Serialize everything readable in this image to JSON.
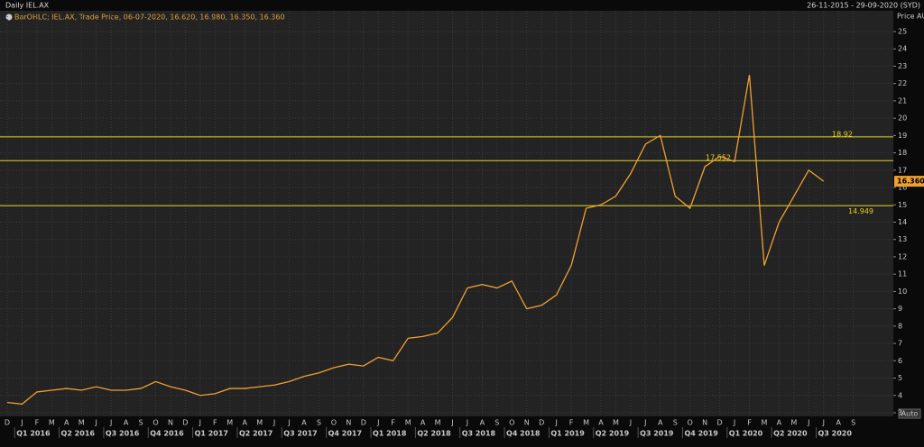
{
  "chart_data": {
    "type": "line",
    "title": "Daily IEL.AX",
    "date_range": "26-11-2015 - 29-09-2020 (SYD)",
    "legend_text": "BarOHLC; IEL.AX, Trade Price, 06-07-2020, 16.620, 16.980, 16.350, 16.360",
    "y_label": "Price AUD",
    "button": "Auto",
    "categories": [
      "D",
      "J",
      "F",
      "M",
      "A",
      "M",
      "J",
      "J",
      "A",
      "S",
      "O",
      "N",
      "D",
      "J",
      "F",
      "M",
      "A",
      "M",
      "J",
      "J",
      "A",
      "S",
      "O",
      "N",
      "D",
      "J",
      "F",
      "M",
      "A",
      "M",
      "J",
      "J",
      "A",
      "S",
      "O",
      "N",
      "D",
      "J",
      "F",
      "M",
      "A",
      "M",
      "J",
      "J",
      "A",
      "S",
      "O",
      "N",
      "D",
      "J",
      "F",
      "M",
      "A",
      "M",
      "J",
      "J",
      "A",
      "S"
    ],
    "quarters": [
      "Q1 2016",
      "Q2 2016",
      "Q3 2016",
      "Q4 2016",
      "Q1 2017",
      "Q2 2017",
      "Q3 2017",
      "Q4 2017",
      "Q1 2018",
      "Q2 2018",
      "Q3 2018",
      "Q4 2018",
      "Q1 2019",
      "Q2 2019",
      "Q3 2019",
      "Q4 2019",
      "Q1 2020",
      "Q2 2020",
      "Q3 2020"
    ],
    "series": [
      {
        "name": "IEL.AX",
        "color": "#f0a030",
        "values": [
          3.6,
          3.5,
          4.2,
          4.3,
          4.4,
          4.3,
          4.5,
          4.3,
          4.3,
          4.4,
          4.8,
          4.5,
          4.3,
          4.0,
          4.1,
          4.4,
          4.4,
          4.5,
          4.6,
          4.8,
          5.1,
          5.3,
          5.6,
          5.8,
          5.7,
          6.2,
          6.0,
          7.3,
          7.4,
          7.6,
          8.5,
          10.2,
          10.4,
          10.2,
          10.6,
          9.0,
          9.2,
          9.8,
          11.5,
          14.8,
          15.0,
          15.5,
          16.8,
          18.5,
          19.0,
          15.5,
          14.8,
          17.2,
          17.8,
          17.5,
          22.5,
          11.5,
          14.0,
          15.5,
          17.0,
          16.36,
          null,
          null
        ]
      }
    ],
    "levels": [
      18.92,
      17.552,
      14.949
    ],
    "level_color": "#e8d020",
    "last_price": {
      "value": 16.36,
      "label": "16.360"
    },
    "ylim": [
      3,
      25
    ],
    "yticks": [
      3,
      4,
      5,
      6,
      7,
      8,
      9,
      10,
      11,
      12,
      13,
      14,
      15,
      16,
      17,
      18,
      19,
      20,
      21,
      22,
      23,
      24,
      25
    ],
    "grid": true
  }
}
